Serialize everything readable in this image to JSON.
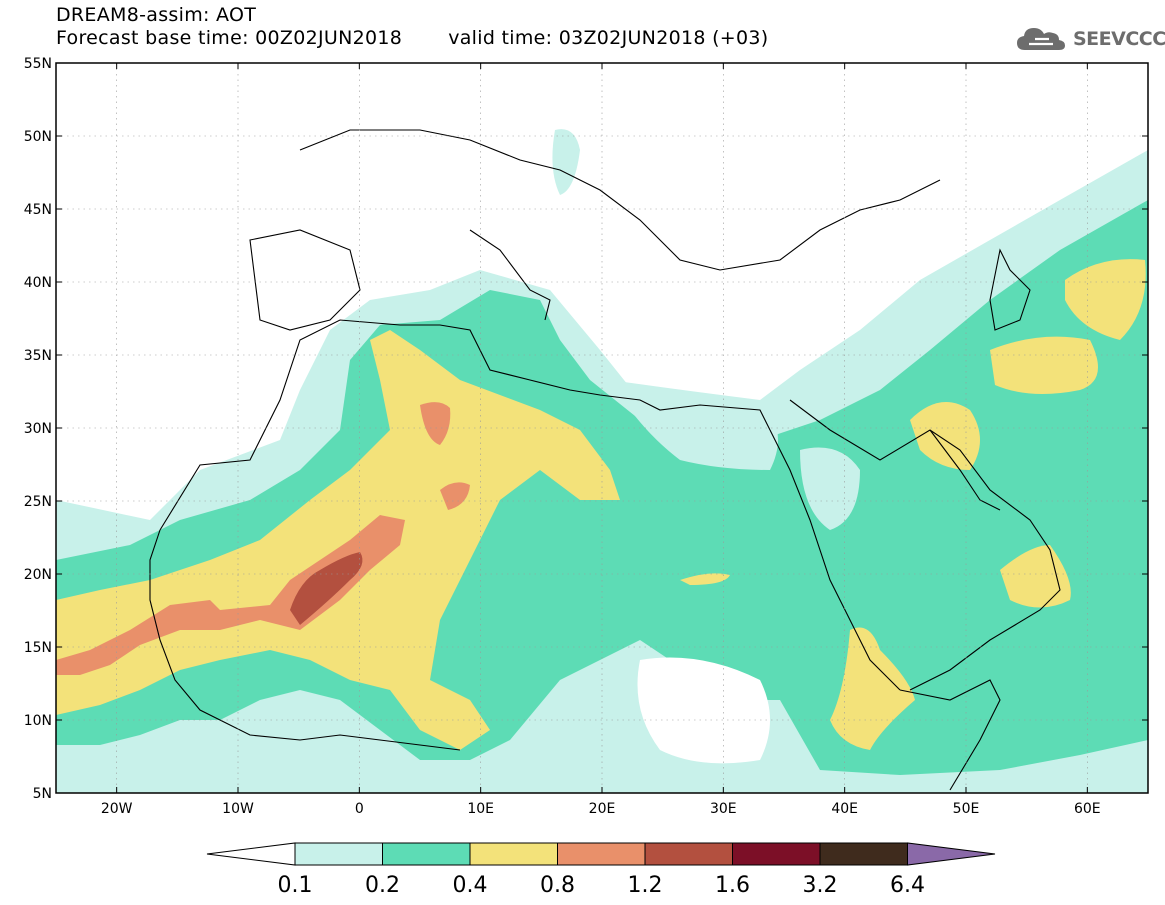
{
  "header": {
    "title": "DREAM8-assim: AOT",
    "base_time": "Forecast base time: 00Z02JUN2018",
    "valid_time": "valid time: 03Z02JUN2018 (+03)"
  },
  "logo": {
    "text": "SEEVCCC",
    "icon": "cloud-icon"
  },
  "map": {
    "variable": "AOT",
    "projection": "lat-lon",
    "lon_range": [
      -25,
      65
    ],
    "lat_range": [
      5,
      55
    ],
    "grid": true,
    "lon_ticks": [
      "20W",
      "10W",
      "0",
      "10E",
      "20E",
      "30E",
      "40E",
      "50E",
      "60E"
    ],
    "lat_ticks": [
      "5N",
      "10N",
      "15N",
      "20N",
      "25N",
      "30N",
      "35N",
      "40N",
      "45N",
      "50N",
      "55N"
    ]
  },
  "colorbar": {
    "labels": [
      "0.1",
      "0.2",
      "0.4",
      "0.8",
      "1.2",
      "1.6",
      "3.2",
      "6.4"
    ],
    "colors": [
      "#c8f1ea",
      "#5ddcb5",
      "#f3e27a",
      "#e9906a",
      "#b3503f",
      "#7c0f27",
      "#3f2b1d",
      "#8a69a8"
    ],
    "open_ends": {
      "below": "#ffffff",
      "above": "#8a69a8"
    }
  }
}
